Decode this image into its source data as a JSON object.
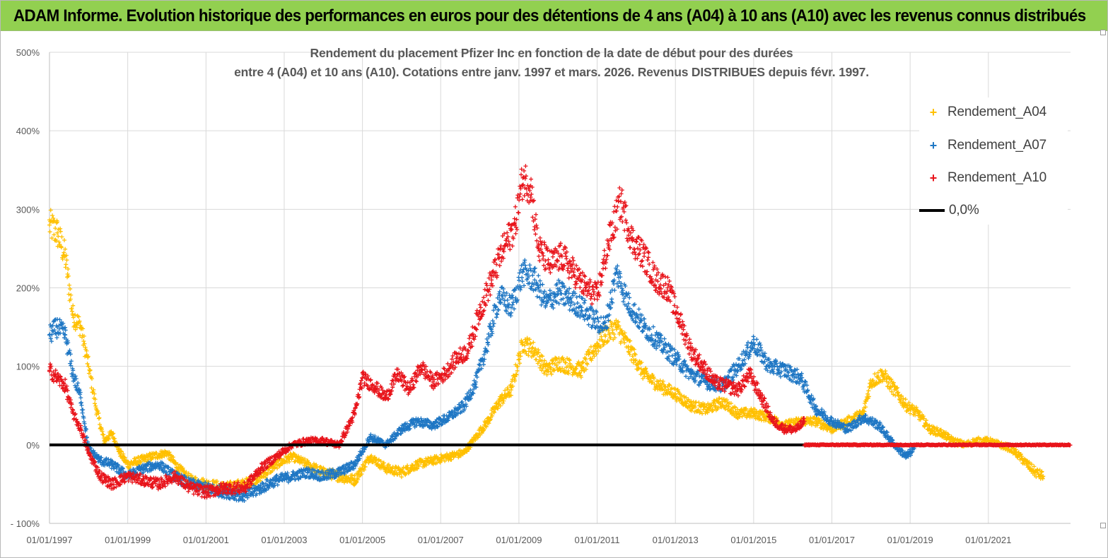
{
  "banner": {
    "text": "ADAM Informe. Evolution historique des performances en euros pour des détentions de 4 ans (A04) à 10 ans (A10) avec les revenus connus distribués",
    "color": "#92d050"
  },
  "chart_data": {
    "type": "scatter",
    "title_line1": "Rendement du placement Pfizer Inc en fonction de la date de début pour des durées",
    "title_line2": "entre 4 (A04) et 10 ans (A10).  Cotations entre janv. 1997 et mars. 2026. Revenus DISTRIBUES depuis févr. 1997.",
    "xlabel": "",
    "ylabel": "",
    "xlim": [
      1997.0,
      2023.1
    ],
    "ylim": [
      -100,
      500
    ],
    "y_ticks": [
      -100,
      0,
      100,
      200,
      300,
      400,
      500
    ],
    "y_tick_labels": [
      "- 100%",
      "0%",
      "100%",
      "200%",
      "300%",
      "400%",
      "500%"
    ],
    "x_ticks": [
      1997,
      1999,
      2001,
      2003,
      2005,
      2007,
      2009,
      2011,
      2013,
      2015,
      2017,
      2019,
      2021
    ],
    "x_tick_labels": [
      "01/01/1997",
      "01/01/1999",
      "01/01/2001",
      "01/01/2003",
      "01/01/2005",
      "01/01/2007",
      "01/01/2009",
      "01/01/2011",
      "01/01/2013",
      "01/01/2015",
      "01/01/2017",
      "01/01/2019",
      "01/01/2021"
    ],
    "grid": true,
    "legend_position": "top-right",
    "series": [
      {
        "name": "Rendement_A04",
        "color": "#ffc000",
        "x": [
          1997.0,
          1997.2,
          1997.4,
          1997.6,
          1997.8,
          1998.0,
          1998.2,
          1998.4,
          1998.6,
          1998.8,
          1999.0,
          1999.3,
          1999.6,
          2000.0,
          2000.3,
          2000.6,
          2001.0,
          2001.5,
          2002.0,
          2002.4,
          2002.8,
          2003.2,
          2003.6,
          2004.0,
          2004.4,
          2004.8,
          2005.2,
          2005.6,
          2006.0,
          2006.4,
          2006.8,
          2007.2,
          2007.6,
          2007.9,
          2008.2,
          2008.5,
          2008.8,
          2009.1,
          2009.4,
          2009.7,
          2010.0,
          2010.3,
          2010.6,
          2010.9,
          2011.2,
          2011.5,
          2011.8,
          2012.2,
          2012.6,
          2013.0,
          2013.4,
          2013.8,
          2014.2,
          2014.6,
          2015.0,
          2015.4,
          2015.8,
          2016.2,
          2016.6,
          2017.0,
          2017.4,
          2017.8,
          2018.0,
          2018.3,
          2018.6,
          2018.9,
          2019.2,
          2019.5,
          2019.8,
          2020.1,
          2020.4,
          2020.7,
          2021.0,
          2021.3,
          2021.6,
          2021.9,
          2022.2,
          2022.4
        ],
        "values": [
          280,
          270,
          240,
          165,
          150,
          100,
          45,
          5,
          15,
          -10,
          -25,
          -20,
          -15,
          -10,
          -30,
          -45,
          -50,
          -55,
          -50,
          -40,
          -25,
          -15,
          -25,
          -35,
          -40,
          -45,
          -15,
          -30,
          -35,
          -25,
          -20,
          -15,
          -10,
          10,
          30,
          55,
          70,
          130,
          120,
          95,
          105,
          100,
          95,
          120,
          140,
          150,
          125,
          90,
          75,
          65,
          50,
          45,
          55,
          40,
          40,
          35,
          25,
          30,
          30,
          20,
          30,
          40,
          80,
          90,
          70,
          50,
          40,
          20,
          15,
          5,
          0,
          5,
          5,
          0,
          -5,
          -20,
          -35,
          -40
        ]
      },
      {
        "name": "Rendement_A07",
        "color": "#1f77c4",
        "x": [
          1997.0,
          1997.2,
          1997.4,
          1997.6,
          1997.8,
          1998.0,
          1998.3,
          1998.6,
          1999.0,
          1999.4,
          1999.8,
          2000.2,
          2000.6,
          2001.0,
          2001.5,
          2002.0,
          2002.4,
          2002.8,
          2003.2,
          2003.6,
          2004.0,
          2004.4,
          2004.8,
          2005.2,
          2005.6,
          2006.0,
          2006.4,
          2006.8,
          2007.2,
          2007.6,
          2007.9,
          2008.2,
          2008.5,
          2008.8,
          2009.1,
          2009.4,
          2009.7,
          2010.0,
          2010.3,
          2010.6,
          2010.9,
          2011.2,
          2011.5,
          2011.8,
          2012.2,
          2012.6,
          2013.0,
          2013.4,
          2013.8,
          2014.2,
          2014.6,
          2015.0,
          2015.4,
          2015.8,
          2016.2,
          2016.6,
          2017.0,
          2017.4,
          2017.8,
          2018.2,
          2018.6,
          2018.9,
          2019.1
        ],
        "values": [
          140,
          150,
          140,
          90,
          60,
          -5,
          -20,
          -25,
          -40,
          -30,
          -25,
          -40,
          -50,
          -55,
          -60,
          -65,
          -55,
          -45,
          -40,
          -35,
          -40,
          -35,
          -25,
          10,
          0,
          20,
          30,
          25,
          35,
          50,
          80,
          130,
          190,
          175,
          220,
          210,
          180,
          195,
          185,
          175,
          160,
          150,
          220,
          180,
          150,
          130,
          110,
          90,
          80,
          75,
          100,
          130,
          100,
          95,
          85,
          45,
          30,
          20,
          35,
          25,
          0,
          -15,
          -5
        ]
      },
      {
        "name": "Rendement_A10",
        "color": "#e8141b",
        "x": [
          1997.0,
          1997.2,
          1997.4,
          1997.6,
          1997.8,
          1998.0,
          1998.3,
          1998.6,
          1999.0,
          1999.4,
          1999.8,
          2000.2,
          2000.6,
          2001.0,
          2001.5,
          2002.0,
          2002.4,
          2002.8,
          2003.2,
          2003.6,
          2004.0,
          2004.4,
          2004.8,
          2005.0,
          2005.3,
          2005.6,
          2005.9,
          2006.2,
          2006.5,
          2006.8,
          2007.1,
          2007.4,
          2007.7,
          2008.0,
          2008.3,
          2008.6,
          2008.9,
          2009.1,
          2009.3,
          2009.5,
          2009.8,
          2010.1,
          2010.4,
          2010.7,
          2011.0,
          2011.3,
          2011.6,
          2011.9,
          2012.2,
          2012.5,
          2012.8,
          2013.1,
          2013.4,
          2013.7,
          2014.0,
          2014.3,
          2014.6,
          2014.9,
          2015.2,
          2015.5,
          2015.8,
          2016.1,
          2016.3
        ],
        "values": [
          95,
          85,
          75,
          40,
          20,
          -10,
          -40,
          -50,
          -40,
          -45,
          -50,
          -40,
          -55,
          -60,
          -55,
          -55,
          -30,
          -15,
          0,
          5,
          5,
          0,
          40,
          85,
          75,
          60,
          90,
          70,
          100,
          80,
          90,
          110,
          120,
          170,
          210,
          250,
          280,
          340,
          330,
          250,
          230,
          240,
          220,
          200,
          190,
          260,
          310,
          260,
          240,
          210,
          200,
          160,
          120,
          100,
          80,
          75,
          70,
          90,
          60,
          30,
          20,
          20,
          30
        ]
      },
      {
        "name": "0,0%",
        "color": "#000000",
        "x": [
          1997.0,
          2023.1
        ],
        "values": [
          0,
          0
        ]
      }
    ],
    "a10_zero_segment": {
      "x_start": 2016.3,
      "x_end": 2023.1,
      "value": 0
    }
  }
}
